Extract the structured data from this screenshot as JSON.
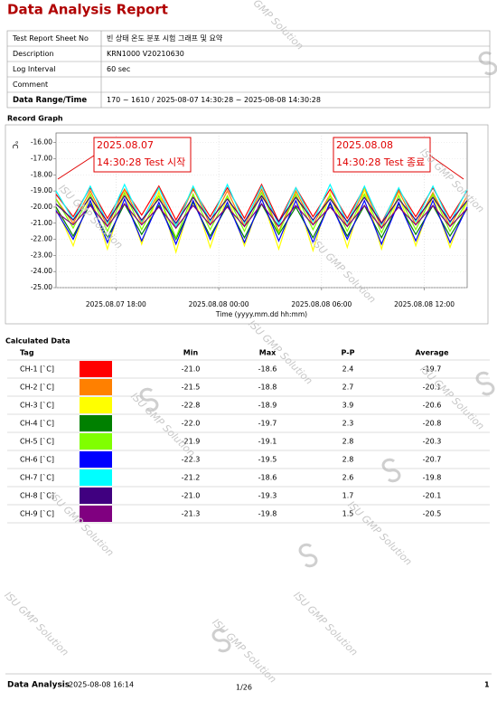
{
  "header": {
    "title": "Data Analysis Report"
  },
  "info": {
    "rows": [
      {
        "label": "Test Report Sheet No",
        "value": "빈 상태 온도 분포 시험 그래프 및 요약"
      },
      {
        "label": "Description",
        "value": "KRN1000 V20210630"
      },
      {
        "label": "Log Interval",
        "value": "60 sec"
      },
      {
        "label": "Comment"
      },
      {
        "label": "Data Range/Time",
        "value": "170 ~ 1610 / 2025-08-07 14:30:28 ~ 2025-08-08 14:30:28"
      }
    ]
  },
  "graph_title": "Record Graph",
  "chart_data": {
    "type": "line",
    "y_label": "°C",
    "x_label": "Time (yyyy.mm.dd hh:mm)",
    "grid": true,
    "xlim": [
      14.5,
      38.5
    ],
    "xticks": [
      {
        "value": 18,
        "label": "2025.08.07 18:00"
      },
      {
        "value": 24,
        "label": "2025.08.08 00:00"
      },
      {
        "value": 30,
        "label": "2025.08.08 06:00"
      },
      {
        "value": 36,
        "label": "2025.08.08 12:00"
      }
    ],
    "ylim": [
      -25,
      -15.4
    ],
    "yticks": [
      {
        "value": -16,
        "label": "-16.00"
      },
      {
        "value": -17,
        "label": "-17.00"
      },
      {
        "value": -18,
        "label": "-18.00"
      },
      {
        "value": -19,
        "label": "-19.00"
      },
      {
        "value": -20,
        "label": "-20.00"
      },
      {
        "value": -21,
        "label": "-21.00"
      },
      {
        "value": -22,
        "label": "-22.00"
      },
      {
        "value": -23,
        "label": "-23.00"
      },
      {
        "value": -24,
        "label": "-24.00"
      },
      {
        "value": -25,
        "label": "-25.00"
      }
    ],
    "annotations": [
      {
        "lines": [
          "2025.08.07",
          "14:30:28 Test 시작"
        ]
      },
      {
        "lines": [
          "2025.08.08",
          "14:30:28 Test 종료"
        ]
      }
    ],
    "x": [
      14.5,
      15.5,
      16.5,
      17.5,
      18.5,
      19.5,
      20.5,
      21.5,
      22.5,
      23.5,
      24.5,
      25.5,
      26.5,
      27.5,
      28.5,
      29.5,
      30.5,
      31.5,
      32.5,
      33.5,
      34.5,
      35.5,
      36.5,
      37.5,
      38.5
    ],
    "series": [
      {
        "color": "#ff0000",
        "values": [
          -19.2,
          -20.6,
          -18.8,
          -20.7,
          -18.9,
          -20.5,
          -18.7,
          -20.8,
          -18.9,
          -20.6,
          -18.8,
          -20.7,
          -18.6,
          -20.9,
          -18.8,
          -20.6,
          -18.9,
          -20.7,
          -18.8,
          -21.0,
          -18.9,
          -20.6,
          -18.8,
          -20.7,
          -19.0
        ]
      },
      {
        "color": "#ff8000",
        "values": [
          -19.5,
          -21.0,
          -19.0,
          -21.2,
          -18.9,
          -21.0,
          -19.1,
          -21.3,
          -18.8,
          -21.1,
          -19.0,
          -21.2,
          -18.9,
          -21.5,
          -19.0,
          -21.1,
          -19.2,
          -21.2,
          -18.9,
          -21.3,
          -19.0,
          -21.1,
          -19.1,
          -21.2,
          -19.3
        ]
      },
      {
        "color": "#ffff00",
        "values": [
          -20.0,
          -22.4,
          -19.2,
          -22.6,
          -19.1,
          -22.3,
          -19.0,
          -22.8,
          -19.2,
          -22.5,
          -19.3,
          -22.4,
          -19.4,
          -22.6,
          -19.2,
          -22.7,
          -19.1,
          -22.5,
          -18.9,
          -22.6,
          -19.2,
          -22.4,
          -19.3,
          -22.5,
          -19.6
        ]
      },
      {
        "color": "#008000",
        "values": [
          -20.0,
          -21.8,
          -19.8,
          -21.9,
          -19.8,
          -21.7,
          -19.9,
          -22.0,
          -19.7,
          -21.8,
          -19.9,
          -21.9,
          -19.8,
          -21.7,
          -20.0,
          -21.9,
          -19.8,
          -21.8,
          -19.9,
          -21.9,
          -19.8,
          -21.7,
          -19.9,
          -21.8,
          -20.1
        ]
      },
      {
        "color": "#80ff00",
        "values": [
          -19.5,
          -21.3,
          -19.2,
          -21.5,
          -19.1,
          -21.4,
          -19.3,
          -21.9,
          -19.2,
          -21.4,
          -19.3,
          -21.5,
          -19.1,
          -21.6,
          -19.2,
          -21.4,
          -19.3,
          -21.5,
          -19.2,
          -21.6,
          -19.3,
          -21.4,
          -19.2,
          -21.5,
          -19.6
        ]
      },
      {
        "color": "#0000ff",
        "values": [
          -20.2,
          -22.0,
          -19.6,
          -22.2,
          -19.5,
          -22.1,
          -19.7,
          -22.3,
          -19.6,
          -22.0,
          -19.7,
          -22.2,
          -19.5,
          -22.1,
          -19.6,
          -22.2,
          -19.7,
          -22.0,
          -19.6,
          -22.3,
          -19.7,
          -22.1,
          -19.6,
          -22.2,
          -20.0
        ]
      },
      {
        "color": "#00ffff",
        "values": [
          -19.0,
          -20.8,
          -18.7,
          -21.0,
          -18.6,
          -20.9,
          -18.8,
          -21.2,
          -18.7,
          -20.9,
          -18.6,
          -21.0,
          -18.7,
          -21.1,
          -18.8,
          -20.9,
          -18.6,
          -21.0,
          -18.7,
          -21.1,
          -18.8,
          -20.9,
          -18.7,
          -21.0,
          -18.9
        ]
      },
      {
        "color": "#400080",
        "values": [
          -19.8,
          -20.8,
          -19.4,
          -20.9,
          -19.3,
          -20.8,
          -19.5,
          -21.0,
          -19.4,
          -20.8,
          -19.5,
          -20.9,
          -19.3,
          -20.9,
          -19.4,
          -20.8,
          -19.5,
          -20.9,
          -19.4,
          -21.0,
          -19.5,
          -20.8,
          -19.4,
          -20.9,
          -19.6
        ]
      },
      {
        "color": "#800080",
        "values": [
          -20.3,
          -21.1,
          -19.9,
          -21.2,
          -19.8,
          -21.1,
          -20.0,
          -21.3,
          -19.9,
          -21.1,
          -20.0,
          -21.2,
          -19.8,
          -21.2,
          -19.9,
          -21.1,
          -20.0,
          -21.2,
          -19.9,
          -21.3,
          -20.0,
          -21.1,
          -19.9,
          -21.2,
          -20.1
        ]
      }
    ]
  },
  "calc_title": "Calculated Data",
  "calc_table": {
    "headers": [
      "Tag",
      "Min",
      "Max",
      "P-P",
      "Average"
    ],
    "rows": [
      {
        "tag": "CH-1 [`C]",
        "min": "-21.0",
        "max": "-18.6",
        "pp": "2.4",
        "average": "-19.7"
      },
      {
        "tag": "CH-2 [`C]",
        "min": "-21.5",
        "max": "-18.8",
        "pp": "2.7",
        "average": "-20.1"
      },
      {
        "tag": "CH-3 [`C]",
        "min": "-22.8",
        "max": "-18.9",
        "pp": "3.9",
        "average": "-20.6"
      },
      {
        "tag": "CH-4 [`C]",
        "min": "-22.0",
        "max": "-19.7",
        "pp": "2.3",
        "average": "-20.8"
      },
      {
        "tag": "CH-5 [`C]",
        "min": "-21.9",
        "max": "-19.1",
        "pp": "2.8",
        "average": "-20.3"
      },
      {
        "tag": "CH-6 [`C]",
        "min": "-22.3",
        "max": "-19.5",
        "pp": "2.8",
        "average": "-20.7"
      },
      {
        "tag": "CH-7 [`C]",
        "min": "-21.2",
        "max": "-18.6",
        "pp": "2.6",
        "average": "-19.8"
      },
      {
        "tag": "CH-8 [`C]",
        "min": "-21.0",
        "max": "-19.3",
        "pp": "1.7",
        "average": "-20.1"
      },
      {
        "tag": "CH-9 [`C]",
        "min": "-21.3",
        "max": "-19.8",
        "pp": "1.5",
        "average": "-20.5"
      }
    ]
  },
  "watermark": "ISU GMP Solution",
  "footer": {
    "label": "Data Analysis",
    "date": "2025-08-08 16:14",
    "page": "1/26",
    "number": "1"
  }
}
